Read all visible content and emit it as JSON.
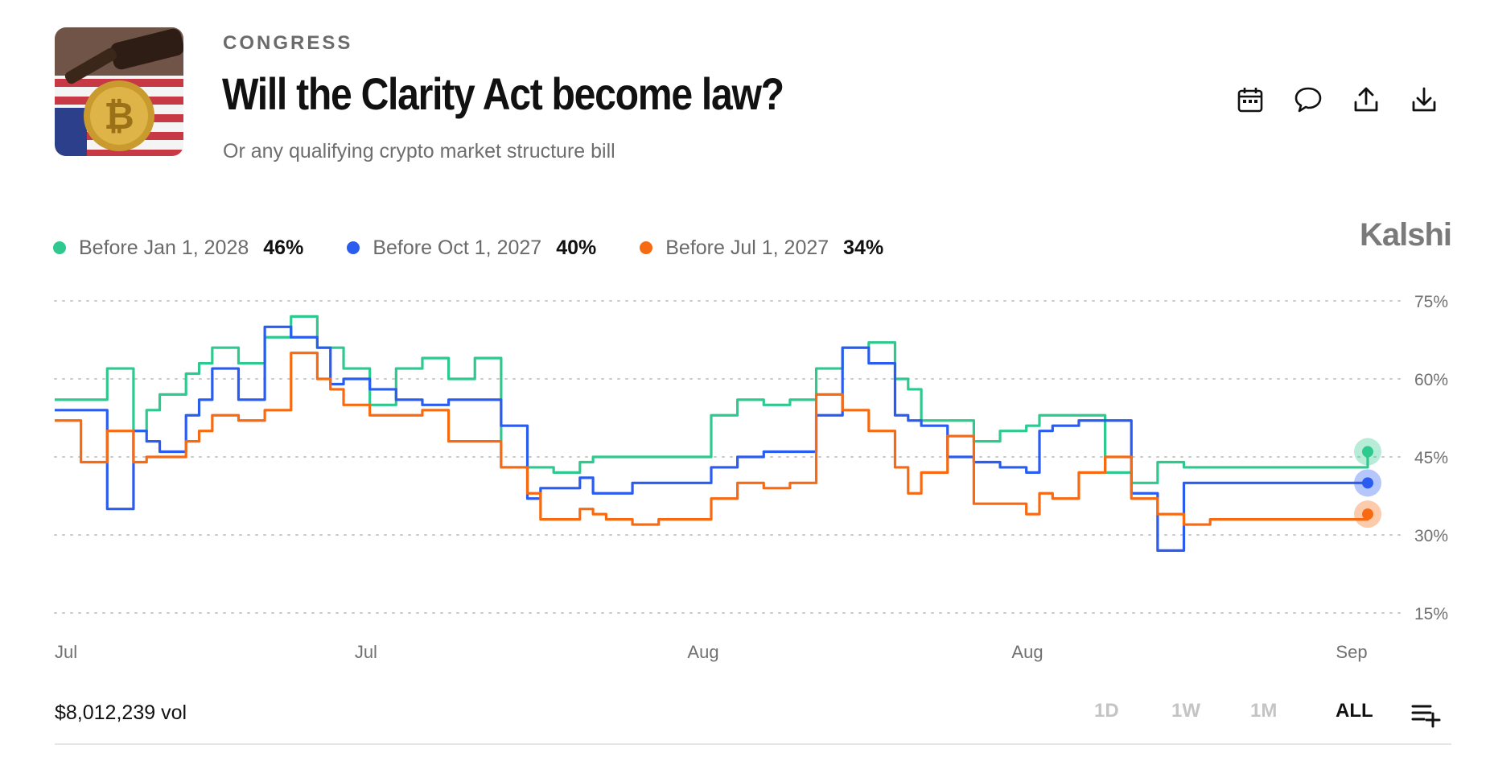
{
  "header": {
    "category": "CONGRESS",
    "title": "Will the Clarity Act become law?",
    "subtitle": "Or any qualifying crypto market structure bill",
    "thumbnail_icon": "bitcoin-gavel-flag-image"
  },
  "actions": [
    {
      "name": "calendar-icon"
    },
    {
      "name": "comment-icon"
    },
    {
      "name": "share-icon"
    },
    {
      "name": "download-icon"
    }
  ],
  "brand": "Kalshi",
  "legend": [
    {
      "label": "Before Jan 1, 2028",
      "value": "46%",
      "color": "#2ec98f"
    },
    {
      "label": "Before Oct 1, 2027",
      "value": "40%",
      "color": "#2a5cf0"
    },
    {
      "label": "Before Jul 1, 2027",
      "value": "34%",
      "color": "#f76a12"
    }
  ],
  "chart_data": {
    "type": "line",
    "x_ticks": [
      "Jul",
      "Jul",
      "Aug",
      "Aug",
      "Sep"
    ],
    "y_ticks": [
      "75%",
      "60%",
      "45%",
      "30%",
      "15%"
    ],
    "ylim": [
      15,
      75
    ],
    "grid": "horizontal dotted",
    "x": [
      0,
      2,
      4,
      6,
      7,
      8,
      10,
      11,
      12,
      14,
      16,
      18,
      20,
      21,
      22,
      24,
      26,
      28,
      30,
      32,
      34,
      36,
      37,
      38,
      40,
      41,
      42,
      44,
      46,
      48,
      50,
      52,
      54,
      56,
      58,
      60,
      62,
      64,
      65,
      66,
      68,
      70,
      72,
      74,
      75,
      76,
      78,
      80,
      82,
      84,
      86,
      88,
      90,
      92,
      94,
      96,
      97,
      98,
      100
    ],
    "series": [
      {
        "name": "Before Jan 1, 2028",
        "color": "#2ec98f",
        "values": [
          56,
          56,
          62,
          50,
          54,
          57,
          61,
          63,
          66,
          63,
          68,
          72,
          66,
          66,
          62,
          55,
          62,
          64,
          60,
          64,
          43,
          43,
          43,
          42,
          44,
          45,
          45,
          45,
          45,
          45,
          53,
          56,
          55,
          56,
          62,
          66,
          67,
          60,
          58,
          52,
          52,
          48,
          50,
          51,
          53,
          53,
          53,
          42,
          40,
          44,
          43,
          43,
          43,
          43,
          43,
          43,
          43,
          43,
          46
        ]
      },
      {
        "name": "Before Oct 1, 2027",
        "color": "#2a5cf0",
        "values": [
          54,
          54,
          35,
          50,
          48,
          46,
          53,
          56,
          62,
          56,
          70,
          68,
          66,
          59,
          60,
          58,
          56,
          55,
          56,
          56,
          51,
          37,
          39,
          39,
          41,
          38,
          38,
          40,
          40,
          40,
          43,
          45,
          46,
          46,
          53,
          66,
          63,
          53,
          52,
          51,
          45,
          44,
          43,
          42,
          50,
          51,
          52,
          52,
          38,
          27,
          40,
          40,
          40,
          40,
          40,
          40,
          40,
          40,
          40
        ]
      },
      {
        "name": "Before Jul 1, 2027",
        "color": "#f76a12",
        "values": [
          52,
          44,
          50,
          44,
          45,
          45,
          48,
          50,
          53,
          52,
          54,
          65,
          60,
          58,
          55,
          53,
          53,
          54,
          48,
          48,
          43,
          38,
          33,
          33,
          35,
          34,
          33,
          32,
          33,
          33,
          37,
          40,
          39,
          40,
          57,
          54,
          50,
          43,
          38,
          42,
          49,
          36,
          36,
          34,
          38,
          37,
          42,
          45,
          37,
          34,
          32,
          33,
          33,
          33,
          33,
          33,
          33,
          33,
          34
        ]
      }
    ]
  },
  "footer": {
    "volume": "$8,012,239 vol",
    "ranges": [
      "1D",
      "1W",
      "1M",
      "ALL"
    ],
    "active_range": "ALL",
    "add_icon": "list-add-icon"
  }
}
